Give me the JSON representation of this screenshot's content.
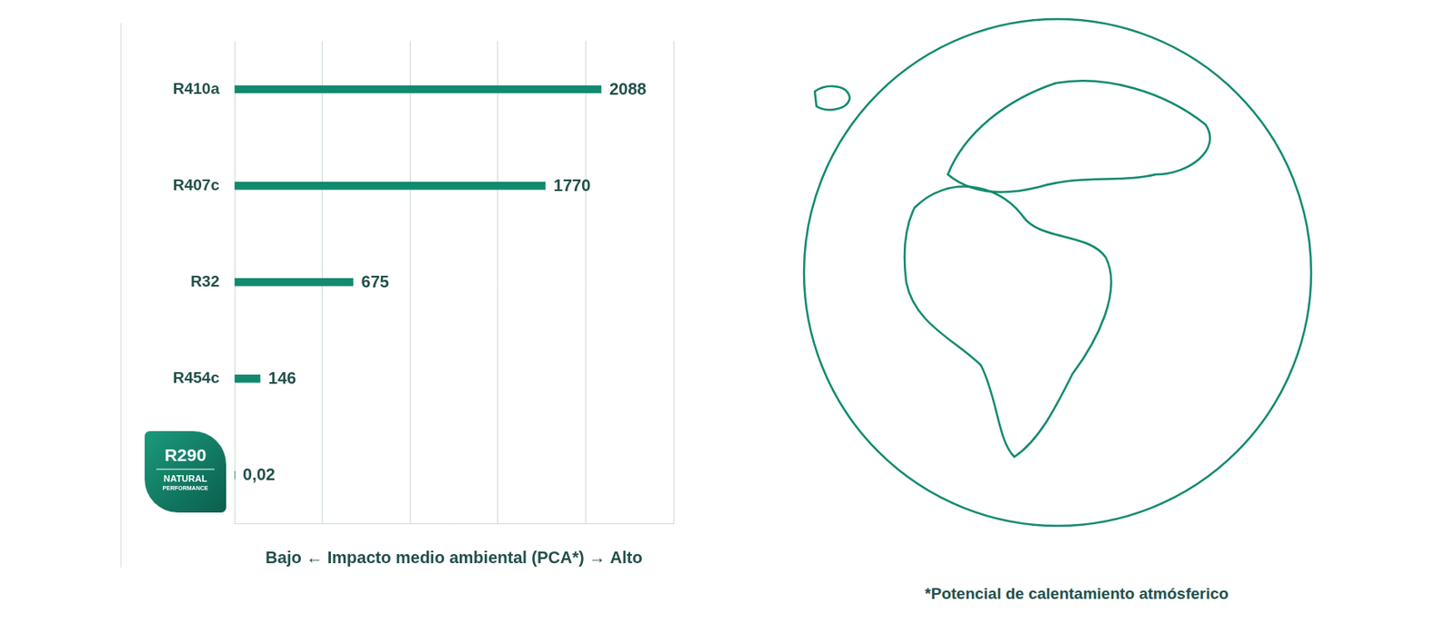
{
  "chart_data": {
    "type": "bar",
    "orientation": "horizontal",
    "categories": [
      "R410a",
      "R407c",
      "R32",
      "R454c",
      "R290"
    ],
    "values": [
      2088,
      1770,
      675,
      146,
      0.02
    ],
    "value_labels": [
      "2088",
      "1770",
      "675",
      "146",
      "0,02"
    ],
    "color": "#128a70",
    "xlim": [
      0,
      2500
    ],
    "xticks": [
      0,
      500,
      1000,
      1500,
      2000,
      2500
    ],
    "grid": true,
    "tick_labels": "y",
    "data_labels": true,
    "x_label": "Bajo ← Impacto medio ambiental (PCA*) → Alto",
    "annotations": [
      {
        "category": "R290",
        "text": "NATURAL PERFORMANCE"
      }
    ],
    "footnote": "*Potencial de calentamiento atmósferico"
  }
}
